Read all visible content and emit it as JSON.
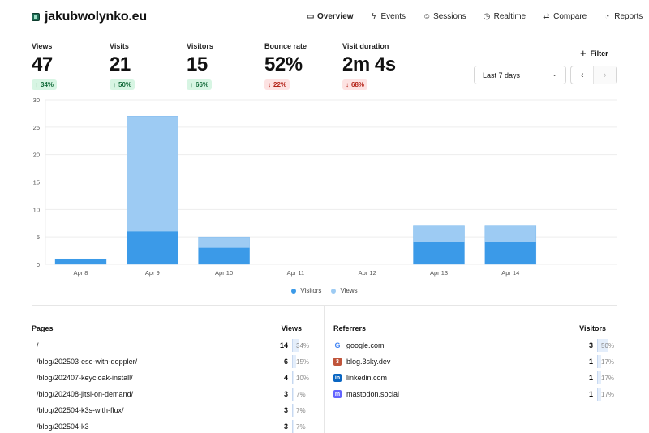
{
  "brand": {
    "name": "jakubwolynko.eu"
  },
  "nav": [
    {
      "label": "Overview",
      "icon": "monitor-icon",
      "glyph": "▭",
      "active": true
    },
    {
      "label": "Events",
      "icon": "bolt-icon",
      "glyph": "ϟ",
      "active": false
    },
    {
      "label": "Sessions",
      "icon": "user-icon",
      "glyph": "☺",
      "active": false
    },
    {
      "label": "Realtime",
      "icon": "clock-icon",
      "glyph": "◷",
      "active": false
    },
    {
      "label": "Compare",
      "icon": "arrows-icon",
      "glyph": "⇄",
      "active": false
    },
    {
      "label": "Reports",
      "icon": "report-icon",
      "glyph": "◔",
      "active": false
    }
  ],
  "metrics": [
    {
      "label": "Views",
      "value": "47",
      "change": "34%",
      "dir": "up"
    },
    {
      "label": "Visits",
      "value": "21",
      "change": "50%",
      "dir": "up"
    },
    {
      "label": "Visitors",
      "value": "15",
      "change": "66%",
      "dir": "up"
    },
    {
      "label": "Bounce rate",
      "value": "52%",
      "change": "22%",
      "dir": "down"
    },
    {
      "label": "Visit duration",
      "value": "2m 4s",
      "change": "68%",
      "dir": "down"
    }
  ],
  "filter": {
    "label": "Filter"
  },
  "range": {
    "label": "Last 7 days"
  },
  "colors": {
    "visitors": "#3b9ae8",
    "views": "#9dcbf3",
    "grid": "#ededed"
  },
  "chart_data": {
    "type": "bar",
    "categories": [
      "Apr 8",
      "Apr 9",
      "Apr 10",
      "Apr 11",
      "Apr 12",
      "Apr 13",
      "Apr 14"
    ],
    "series": [
      {
        "name": "Visitors",
        "values": [
          1,
          6,
          3,
          0,
          0,
          4,
          4
        ]
      },
      {
        "name": "Views",
        "values": [
          1,
          27,
          5,
          0,
          0,
          7,
          7
        ]
      }
    ],
    "yticks": [
      0,
      5,
      10,
      15,
      20,
      25,
      30
    ],
    "ylim": [
      0,
      30
    ],
    "grid": true,
    "legend": "bottom-center"
  },
  "pages": {
    "title": "Pages",
    "metric": "Views",
    "rows": [
      {
        "name": "/",
        "value": "14",
        "pct": "34%",
        "frac": 0.34
      },
      {
        "name": "/blog/202503-eso-with-doppler/",
        "value": "6",
        "pct": "15%",
        "frac": 0.15
      },
      {
        "name": "/blog/202407-keycloak-install/",
        "value": "4",
        "pct": "10%",
        "frac": 0.1
      },
      {
        "name": "/blog/202408-jitsi-on-demand/",
        "value": "3",
        "pct": "7%",
        "frac": 0.07
      },
      {
        "name": "/blog/202504-k3s-with-flux/",
        "value": "3",
        "pct": "7%",
        "frac": 0.07
      },
      {
        "name": "/blog/202504-k3",
        "value": "3",
        "pct": "7%",
        "frac": 0.07
      }
    ]
  },
  "referrers": {
    "title": "Referrers",
    "metric": "Visitors",
    "rows": [
      {
        "name": "google.com",
        "value": "3",
        "pct": "50%",
        "frac": 0.5,
        "icon": "google-icon",
        "glyph": "G",
        "color": "#ffffff"
      },
      {
        "name": "blog.3sky.dev",
        "value": "1",
        "pct": "17%",
        "frac": 0.17,
        "icon": "blog-icon",
        "glyph": "3",
        "color": "#c0553b"
      },
      {
        "name": "linkedin.com",
        "value": "1",
        "pct": "17%",
        "frac": 0.17,
        "icon": "linkedin-icon",
        "glyph": "in",
        "color": "#0a66c2"
      },
      {
        "name": "mastodon.social",
        "value": "1",
        "pct": "17%",
        "frac": 0.17,
        "icon": "mastodon-icon",
        "glyph": "m",
        "color": "#6364ff"
      }
    ]
  }
}
